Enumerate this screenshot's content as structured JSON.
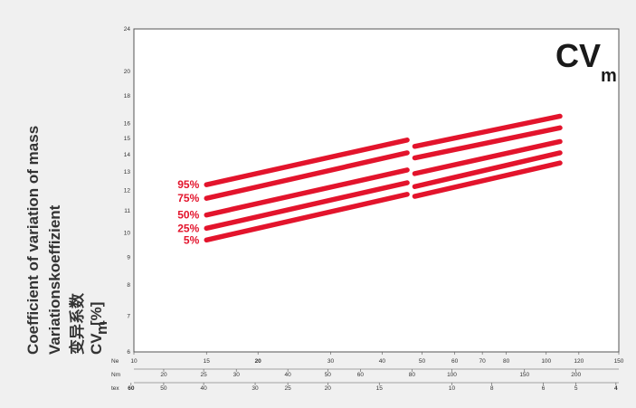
{
  "chart_data": {
    "type": "line",
    "title": "CV",
    "title_sub": "m",
    "ylabel_lines": [
      "Coefficient of variation of mass",
      "Variationskoeffizient",
      "变异系数"
    ],
    "ylabel_cv": "CV",
    "ylabel_cv_sub": "m",
    "ylabel_unit": "[%]",
    "y_scale": "log",
    "ylim": [
      6,
      24
    ],
    "y_ticks": [
      6,
      7,
      8,
      9,
      10,
      11,
      12,
      13,
      14,
      15,
      16,
      18,
      20,
      24
    ],
    "x_scale": "log",
    "xlim": [
      10,
      150
    ],
    "grid": true,
    "x_axis_name": "Ne",
    "x_scales": [
      {
        "name": "Ne",
        "ticks": [
          {
            "value": 10,
            "label": "10",
            "bold": false
          },
          {
            "value": 15,
            "label": "15",
            "bold": false
          },
          {
            "value": 20,
            "label": "20",
            "bold": true
          },
          {
            "value": 30,
            "label": "30",
            "bold": false
          },
          {
            "value": 40,
            "label": "40",
            "bold": false
          },
          {
            "value": 50,
            "label": "50",
            "bold": false
          },
          {
            "value": 60,
            "label": "60",
            "bold": false
          },
          {
            "value": 70,
            "label": "70",
            "bold": false
          },
          {
            "value": 80,
            "label": "80",
            "bold": false
          },
          {
            "value": 100,
            "label": "100",
            "bold": false
          },
          {
            "value": 120,
            "label": "120",
            "bold": false
          },
          {
            "value": 150,
            "label": "150",
            "bold": false
          }
        ]
      },
      {
        "name": "Nm",
        "ticks": [
          {
            "value": 20,
            "label": "20",
            "bold": false
          },
          {
            "value": 25,
            "label": "25",
            "bold": false
          },
          {
            "value": 30,
            "label": "30",
            "bold": false
          },
          {
            "value": 40,
            "label": "40",
            "bold": false
          },
          {
            "value": 50,
            "label": "50",
            "bold": false
          },
          {
            "value": 60,
            "label": "60",
            "bold": false
          },
          {
            "value": 80,
            "label": "80",
            "bold": false
          },
          {
            "value": 100,
            "label": "100",
            "bold": false
          },
          {
            "value": 150,
            "label": "150",
            "bold": false
          },
          {
            "value": 200,
            "label": "200",
            "bold": false
          }
        ]
      },
      {
        "name": "tex",
        "ticks": [
          {
            "value": 60,
            "label": "60",
            "bold": true
          },
          {
            "value": 50,
            "label": "50",
            "bold": false
          },
          {
            "value": 40,
            "label": "40",
            "bold": false
          },
          {
            "value": 30,
            "label": "30",
            "bold": false
          },
          {
            "value": 25,
            "label": "25",
            "bold": false
          },
          {
            "value": 20,
            "label": "20",
            "bold": false
          },
          {
            "value": 15,
            "label": "15",
            "bold": false
          },
          {
            "value": 10,
            "label": "10",
            "bold": false
          },
          {
            "value": 8,
            "label": "8",
            "bold": false
          },
          {
            "value": 6,
            "label": "6",
            "bold": false
          },
          {
            "value": 5,
            "label": "5",
            "bold": false
          },
          {
            "value": 4,
            "label": "4",
            "bold": true
          }
        ]
      }
    ],
    "series": [
      {
        "name": "95%",
        "segments": [
          {
            "x": [
              15,
              46
            ],
            "y": [
              12.3,
              14.9
            ]
          },
          {
            "x": [
              48,
              108
            ],
            "y": [
              14.5,
              16.5
            ]
          }
        ]
      },
      {
        "name": "75%",
        "segments": [
          {
            "x": [
              15,
              46
            ],
            "y": [
              11.6,
              14.1
            ]
          },
          {
            "x": [
              48,
              108
            ],
            "y": [
              13.8,
              15.7
            ]
          }
        ]
      },
      {
        "name": "50%",
        "segments": [
          {
            "x": [
              15,
              46
            ],
            "y": [
              10.8,
              13.1
            ]
          },
          {
            "x": [
              48,
              108
            ],
            "y": [
              12.9,
              14.8
            ]
          }
        ]
      },
      {
        "name": "25%",
        "segments": [
          {
            "x": [
              15,
              46
            ],
            "y": [
              10.2,
              12.4
            ]
          },
          {
            "x": [
              48,
              108
            ],
            "y": [
              12.2,
              14.1
            ]
          }
        ]
      },
      {
        "name": "5%",
        "segments": [
          {
            "x": [
              15,
              46
            ],
            "y": [
              9.7,
              11.8
            ]
          },
          {
            "x": [
              48,
              108
            ],
            "y": [
              11.7,
              13.5
            ]
          }
        ]
      }
    ],
    "colors": {
      "series": "#e3142c",
      "grid": "#c8c8c8",
      "frame": "#555555",
      "text": "#333333",
      "background": "#f0f0f0"
    }
  }
}
